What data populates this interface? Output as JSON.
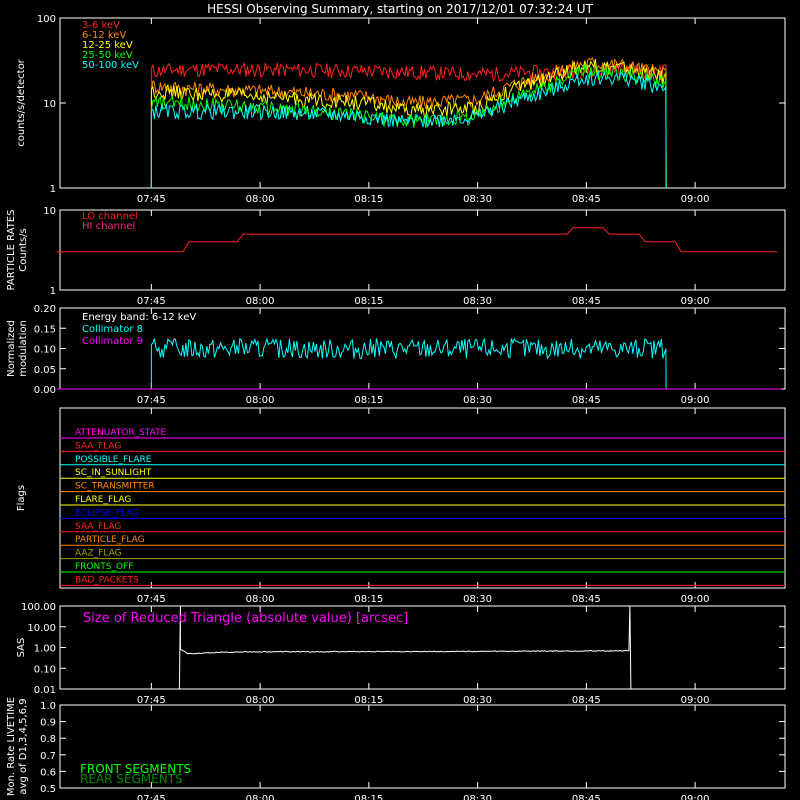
{
  "title": "HESSI Observing Summary, starting on 2017/12/01 07:32:24 UT",
  "time_axis": {
    "start": "07:32:24",
    "end": "09:12:24",
    "ticks": [
      "07:45",
      "08:00",
      "08:15",
      "08:30",
      "08:45",
      "09:00"
    ]
  },
  "colors": {
    "red": "#ff2020",
    "orange": "#ff8800",
    "yellow": "#ffff00",
    "green": "#00ff00",
    "cyan": "#00ffff",
    "magenta": "#ff00ff",
    "blue": "#0000ff",
    "olive": "#a0a000",
    "white": "#ffffff"
  },
  "chart_data": [
    {
      "type": "line",
      "name": "count_rates",
      "ylabel": "counts/s/detector",
      "yscale": "log",
      "ylim": [
        1,
        100
      ],
      "yticks": [
        "1",
        "10",
        "100"
      ],
      "series": [
        {
          "name": "3-6 keV",
          "color": "#ff2020",
          "x": [
            "07:45",
            "07:50",
            "08:00",
            "08:15",
            "08:30",
            "08:45",
            "08:50",
            "08:56"
          ],
          "y": [
            24,
            25,
            25,
            24,
            22,
            24,
            25,
            24
          ]
        },
        {
          "name": "6-12 keV",
          "color": "#ff8800",
          "x": [
            "07:45",
            "07:50",
            "08:00",
            "08:15",
            "08:20",
            "08:30",
            "08:40",
            "08:45",
            "08:50",
            "08:56"
          ],
          "y": [
            16,
            15,
            14,
            12,
            10,
            11,
            22,
            30,
            28,
            22
          ]
        },
        {
          "name": "12-25 keV",
          "color": "#ffff00",
          "x": [
            "07:45",
            "07:50",
            "08:00",
            "08:15",
            "08:20",
            "08:30",
            "08:40",
            "08:45",
            "08:50",
            "08:56"
          ],
          "y": [
            14,
            13,
            12,
            10,
            8,
            9,
            20,
            28,
            26,
            20
          ]
        },
        {
          "name": "25-50 keV",
          "color": "#00ff00",
          "x": [
            "07:45",
            "07:50",
            "08:00",
            "08:15",
            "08:20",
            "08:30",
            "08:40",
            "08:45",
            "08:50",
            "08:56"
          ],
          "y": [
            10,
            10,
            9,
            7,
            6,
            7,
            16,
            24,
            22,
            17
          ]
        },
        {
          "name": "50-100 keV",
          "color": "#00ffff",
          "x": [
            "07:45",
            "07:50",
            "08:00",
            "08:15",
            "08:20",
            "08:30",
            "08:40",
            "08:45",
            "08:50",
            "08:56"
          ],
          "y": [
            8,
            8,
            8,
            7,
            6,
            7,
            14,
            20,
            20,
            15
          ]
        }
      ]
    },
    {
      "type": "line",
      "name": "particle_rates",
      "ylabel": "PARTICLE RATES",
      "ylabel2": "Counts/s",
      "yscale": "log",
      "ylim": [
        1,
        10
      ],
      "yticks": [
        "1",
        "10"
      ],
      "series": [
        {
          "name": "LO channel",
          "color": "#ff2020",
          "x": [
            "07:32",
            "07:45",
            "07:50",
            "07:55",
            "08:00",
            "08:15",
            "08:30",
            "08:40",
            "08:45",
            "08:55",
            "09:00",
            "09:12"
          ],
          "y": [
            3,
            3,
            3.5,
            4,
            5,
            5,
            4.5,
            5,
            6,
            4,
            3,
            3
          ]
        },
        {
          "name": "HI channel",
          "color": "#ff2080",
          "x": [],
          "y": []
        }
      ]
    },
    {
      "type": "line",
      "name": "modulation",
      "ylabel": "Normalized",
      "ylabel2": "modulation",
      "ylim": [
        0,
        0.2
      ],
      "yticks": [
        "0.00",
        "0.05",
        "0.10",
        "0.15",
        "0.20"
      ],
      "annotation": "Energy band: 6-12 keV",
      "series": [
        {
          "name": "Collimator 8",
          "color": "#00ffff",
          "x": [
            "07:45",
            "08:56"
          ],
          "y": [
            0.1,
            0.1
          ]
        },
        {
          "name": "Collimator 9",
          "color": "#ff00ff",
          "x": [
            "07:32",
            "09:12"
          ],
          "y": [
            0,
            0
          ]
        }
      ]
    },
    {
      "type": "flags",
      "name": "flags",
      "ylabel": "Flags",
      "rows": [
        {
          "name": "ATTENUATOR_STATE",
          "color": "#ff00ff"
        },
        {
          "name": "SAA_FLAG",
          "color": "#ff2020"
        },
        {
          "name": "POSSIBLE_FLARE",
          "color": "#00ffff"
        },
        {
          "name": "SC_IN_SUNLIGHT",
          "color": "#ffff00"
        },
        {
          "name": "SC_TRANSMITTER",
          "color": "#ff8800"
        },
        {
          "name": "FLARE_FLAG",
          "color": "#ffff00"
        },
        {
          "name": "ECLIPSE_FLAG",
          "color": "#0000ff"
        },
        {
          "name": "SAA_FLAG",
          "color": "#ff2020"
        },
        {
          "name": "PARTICLE_FLAG",
          "color": "#ff8800"
        },
        {
          "name": "AAZ_FLAG",
          "color": "#a0a000"
        },
        {
          "name": "FRONTS_OFF",
          "color": "#00ff00"
        },
        {
          "name": "BAD_PACKETS",
          "color": "#ff2020"
        }
      ]
    },
    {
      "type": "line",
      "name": "sas",
      "ylabel": "SAS",
      "yscale": "log",
      "ylim": [
        0.01,
        100
      ],
      "yticks": [
        "100.00",
        "10.00",
        "1.00",
        "0.10",
        "0.01"
      ],
      "annotation": "Size of Reduced Triangle (absolute value) [arcsec]",
      "series": [
        {
          "name": "",
          "color": "#ffffff",
          "x": [
            "07:49",
            "07:50",
            "07:55",
            "08:00",
            "08:30",
            "08:51"
          ],
          "y": [
            0.8,
            0.5,
            0.6,
            0.62,
            0.65,
            0.7
          ]
        }
      ]
    },
    {
      "type": "line",
      "name": "livetime",
      "ylabel": "Mon. Rate LIVETIME",
      "ylabel2": "avg of D1,3,4,5,6,9",
      "ylim": [
        0.5,
        1.0
      ],
      "yticks": [
        "0.5",
        "0.6",
        "0.7",
        "0.8",
        "0.9",
        "1.0"
      ],
      "legend": [
        {
          "name": "FRONT SEGMENTS",
          "color": "#00ff00"
        },
        {
          "name": "REAR SEGMENTS",
          "color": "#008800"
        }
      ],
      "series": []
    }
  ]
}
